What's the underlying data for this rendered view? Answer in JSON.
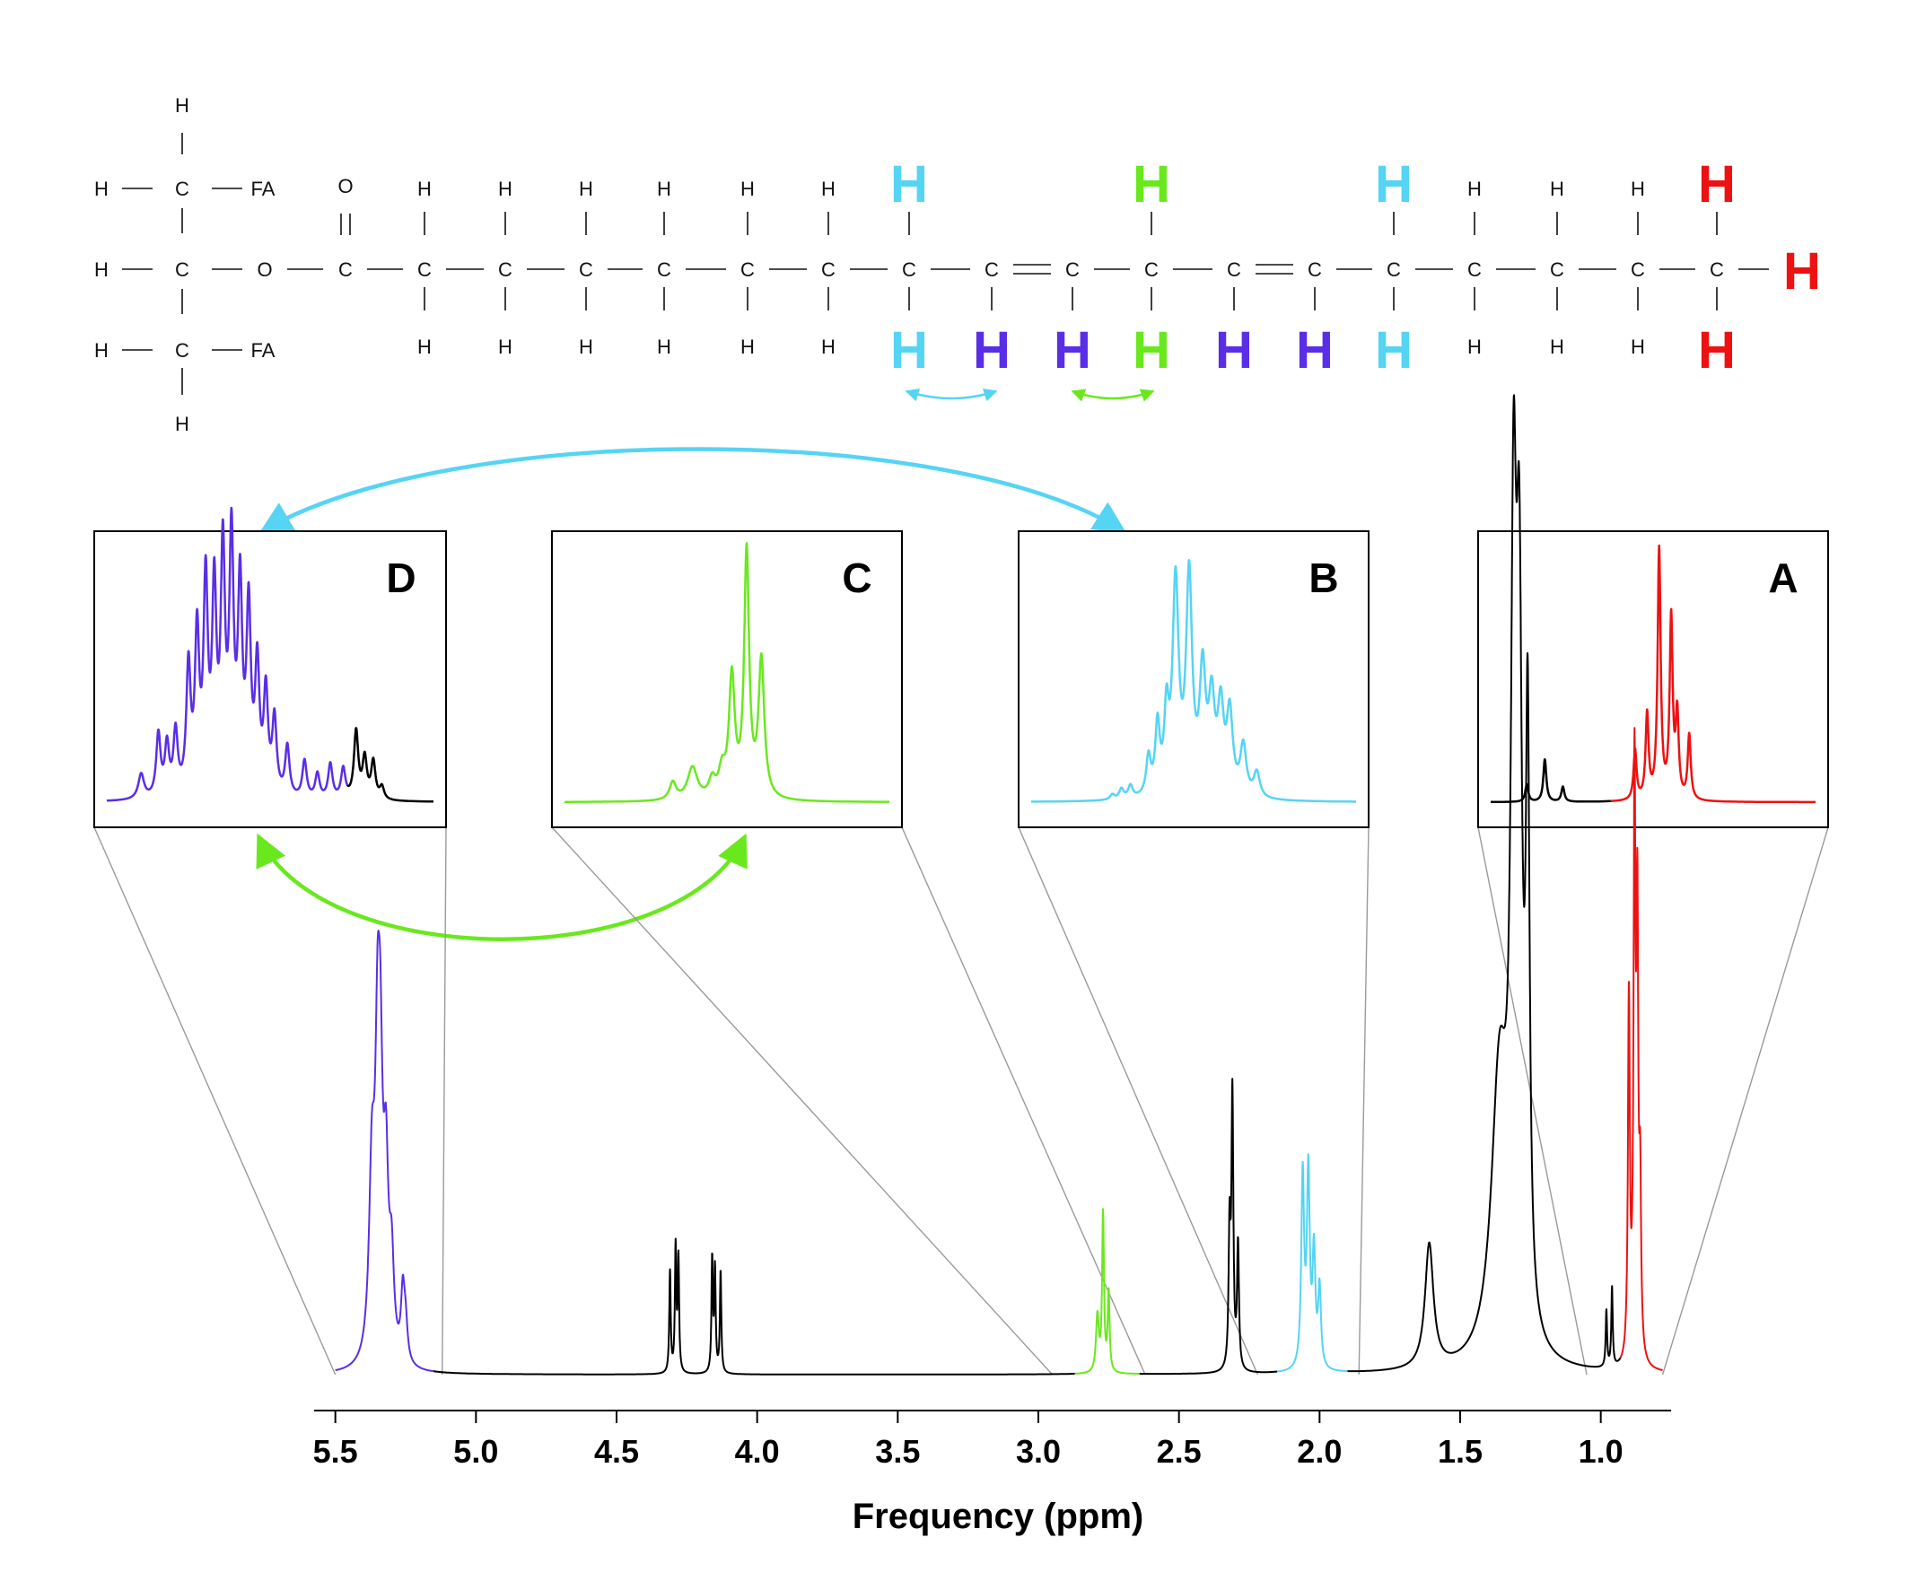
{
  "colors": {
    "black": "#000000",
    "red": "#ee1111",
    "cyan": "#55d4f4",
    "green": "#6ae81e",
    "purple": "#5a2ee6",
    "zoom_line": "#9a9a9a"
  },
  "molecule": {
    "glycerol": {
      "top_H": "H",
      "bottom_H": "H",
      "rows": [
        {
          "left": "H",
          "center": "C",
          "right": "FA"
        },
        {
          "left": "H",
          "center": "C",
          "right": "O"
        },
        {
          "left": "H",
          "center": "C",
          "right": "FA"
        }
      ]
    },
    "carbonyl": {
      "carbon": "C",
      "oxygen": "O"
    },
    "chain": [
      {
        "atom": "C",
        "top": "H",
        "bottom": "H",
        "color": "black",
        "bond_right": "single"
      },
      {
        "atom": "C",
        "top": "H",
        "bottom": "H",
        "color": "black",
        "bond_right": "single"
      },
      {
        "atom": "C",
        "top": "H",
        "bottom": "H",
        "color": "black",
        "bond_right": "single"
      },
      {
        "atom": "C",
        "top": "H",
        "bottom": "H",
        "color": "black",
        "bond_right": "single"
      },
      {
        "atom": "C",
        "top": "H",
        "bottom": "H",
        "color": "black",
        "bond_right": "single"
      },
      {
        "atom": "C",
        "top": "H",
        "bottom": "H",
        "color": "black",
        "bond_right": "single"
      },
      {
        "atom": "C",
        "top": "H",
        "bottom": "H",
        "color": "cyan",
        "bond_right": "single"
      },
      {
        "atom": "C",
        "top": "",
        "bottom": "H",
        "color": "purple",
        "bond_right": "double"
      },
      {
        "atom": "C",
        "top": "",
        "bottom": "H",
        "color": "purple",
        "bond_right": "single"
      },
      {
        "atom": "C",
        "top": "H",
        "bottom": "H",
        "color": "green",
        "bond_right": "single"
      },
      {
        "atom": "C",
        "top": "",
        "bottom": "H",
        "color": "purple",
        "bond_right": "double"
      },
      {
        "atom": "C",
        "top": "",
        "bottom": "H",
        "color": "purple",
        "bond_right": "single"
      },
      {
        "atom": "C",
        "top": "H",
        "bottom": "H",
        "color": "cyan",
        "bond_right": "single"
      },
      {
        "atom": "C",
        "top": "H",
        "bottom": "H",
        "color": "black",
        "bond_right": "single"
      },
      {
        "atom": "C",
        "top": "H",
        "bottom": "H",
        "color": "black",
        "bond_right": "single"
      },
      {
        "atom": "C",
        "top": "H",
        "bottom": "H",
        "color": "black",
        "bond_right": "single"
      },
      {
        "atom": "C",
        "top": "H",
        "bottom": "H",
        "color": "red",
        "bond_right": "end"
      }
    ],
    "terminal_H": "H"
  },
  "chart_data": {
    "type": "line",
    "xlabel": "Frequency (ppm)",
    "ylabel": "",
    "xlim": [
      5.55,
      0.75
    ],
    "x_reversed": true,
    "ticks": [
      5.5,
      5.0,
      4.5,
      4.0,
      3.5,
      3.0,
      2.5,
      2.0,
      1.5,
      1.0
    ],
    "tick_labels": [
      "5.5",
      "5.0",
      "4.5",
      "4.0",
      "3.5",
      "3.0",
      "2.5",
      "2.0",
      "1.5",
      "1.0"
    ],
    "baseline": 0,
    "max_intensity": 1.0,
    "peaks": [
      {
        "ppm": 5.37,
        "height": 0.16,
        "width": 0.012
      },
      {
        "ppm": 5.35,
        "height": 0.22,
        "width": 0.01
      },
      {
        "ppm": 5.34,
        "height": 0.2,
        "width": 0.01
      },
      {
        "ppm": 5.32,
        "height": 0.15,
        "width": 0.01
      },
      {
        "ppm": 5.3,
        "height": 0.08,
        "width": 0.01
      },
      {
        "ppm": 5.26,
        "height": 0.06,
        "width": 0.008
      },
      {
        "ppm": 5.25,
        "height": 0.03,
        "width": 0.008
      },
      {
        "ppm": 4.31,
        "height": 0.09,
        "width": 0.003
      },
      {
        "ppm": 4.29,
        "height": 0.11,
        "width": 0.003
      },
      {
        "ppm": 4.28,
        "height": 0.1,
        "width": 0.003
      },
      {
        "ppm": 4.16,
        "height": 0.1,
        "width": 0.003
      },
      {
        "ppm": 4.15,
        "height": 0.09,
        "width": 0.003
      },
      {
        "ppm": 4.13,
        "height": 0.09,
        "width": 0.003
      },
      {
        "ppm": 2.79,
        "height": 0.05,
        "width": 0.006
      },
      {
        "ppm": 2.77,
        "height": 0.14,
        "width": 0.004
      },
      {
        "ppm": 2.75,
        "height": 0.07,
        "width": 0.004
      },
      {
        "ppm": 2.32,
        "height": 0.12,
        "width": 0.004
      },
      {
        "ppm": 2.31,
        "height": 0.24,
        "width": 0.004
      },
      {
        "ppm": 2.29,
        "height": 0.11,
        "width": 0.004
      },
      {
        "ppm": 2.06,
        "height": 0.17,
        "width": 0.006
      },
      {
        "ppm": 2.04,
        "height": 0.17,
        "width": 0.006
      },
      {
        "ppm": 2.02,
        "height": 0.1,
        "width": 0.006
      },
      {
        "ppm": 2.0,
        "height": 0.07,
        "width": 0.006
      },
      {
        "ppm": 1.61,
        "height": 0.11,
        "width": 0.018
      },
      {
        "ppm": 1.36,
        "height": 0.25,
        "width": 0.035
      },
      {
        "ppm": 1.31,
        "height": 0.62,
        "width": 0.012
      },
      {
        "ppm": 1.29,
        "height": 0.55,
        "width": 0.012
      },
      {
        "ppm": 1.26,
        "height": 0.5,
        "width": 0.008
      },
      {
        "ppm": 0.98,
        "height": 0.05,
        "width": 0.003
      },
      {
        "ppm": 0.96,
        "height": 0.07,
        "width": 0.003
      },
      {
        "ppm": 0.9,
        "height": 0.32,
        "width": 0.004
      },
      {
        "ppm": 0.88,
        "height": 0.5,
        "width": 0.004
      },
      {
        "ppm": 0.87,
        "height": 0.37,
        "width": 0.004
      },
      {
        "ppm": 0.86,
        "height": 0.14,
        "width": 0.004
      }
    ],
    "series": [
      {
        "range": [
          5.55,
          5.15
        ],
        "color": "purple"
      },
      {
        "range": [
          5.15,
          2.87
        ],
        "color": "black"
      },
      {
        "range": [
          2.87,
          2.64
        ],
        "color": "green"
      },
      {
        "range": [
          2.64,
          2.15
        ],
        "color": "black"
      },
      {
        "range": [
          2.15,
          1.9
        ],
        "color": "cyan"
      },
      {
        "range": [
          1.9,
          0.93
        ],
        "color": "black"
      },
      {
        "range": [
          0.93,
          0.75
        ],
        "color": "red"
      }
    ],
    "insets": [
      {
        "label": "D",
        "range": [
          5.5,
          5.12
        ],
        "color": "purple",
        "split_ppm": 5.22,
        "split_color": "black",
        "peaks": [
          {
            "ppm": 5.46,
            "height": 0.1,
            "width": 0.004
          },
          {
            "ppm": 5.44,
            "height": 0.25,
            "width": 0.003
          },
          {
            "ppm": 5.43,
            "height": 0.2,
            "width": 0.003
          },
          {
            "ppm": 5.42,
            "height": 0.25,
            "width": 0.003
          },
          {
            "ppm": 5.405,
            "height": 0.5,
            "width": 0.003
          },
          {
            "ppm": 5.395,
            "height": 0.62,
            "width": 0.003
          },
          {
            "ppm": 5.385,
            "height": 0.82,
            "width": 0.003
          },
          {
            "ppm": 5.375,
            "height": 0.78,
            "width": 0.003
          },
          {
            "ppm": 5.365,
            "height": 0.93,
            "width": 0.003
          },
          {
            "ppm": 5.355,
            "height": 0.98,
            "width": 0.003
          },
          {
            "ppm": 5.345,
            "height": 0.8,
            "width": 0.003
          },
          {
            "ppm": 5.335,
            "height": 0.72,
            "width": 0.003
          },
          {
            "ppm": 5.325,
            "height": 0.5,
            "width": 0.003
          },
          {
            "ppm": 5.315,
            "height": 0.4,
            "width": 0.003
          },
          {
            "ppm": 5.305,
            "height": 0.3,
            "width": 0.003
          },
          {
            "ppm": 5.29,
            "height": 0.2,
            "width": 0.003
          },
          {
            "ppm": 5.27,
            "height": 0.15,
            "width": 0.003
          },
          {
            "ppm": 5.255,
            "height": 0.1,
            "width": 0.003
          },
          {
            "ppm": 5.24,
            "height": 0.14,
            "width": 0.003
          },
          {
            "ppm": 5.225,
            "height": 0.12,
            "width": 0.003
          },
          {
            "ppm": 5.21,
            "height": 0.27,
            "width": 0.003
          },
          {
            "ppm": 5.2,
            "height": 0.16,
            "width": 0.003
          },
          {
            "ppm": 5.19,
            "height": 0.15,
            "width": 0.003
          },
          {
            "ppm": 5.18,
            "height": 0.05,
            "width": 0.003
          }
        ]
      },
      {
        "label": "C",
        "range": [
          2.95,
          2.62
        ],
        "color": "green",
        "peaks": [
          {
            "ppm": 2.84,
            "height": 0.07,
            "width": 0.004
          },
          {
            "ppm": 2.82,
            "height": 0.13,
            "width": 0.006
          },
          {
            "ppm": 2.8,
            "height": 0.07,
            "width": 0.004
          },
          {
            "ppm": 2.79,
            "height": 0.1,
            "width": 0.004
          },
          {
            "ppm": 2.78,
            "height": 0.48,
            "width": 0.0035
          },
          {
            "ppm": 2.765,
            "height": 0.98,
            "width": 0.003
          },
          {
            "ppm": 2.75,
            "height": 0.55,
            "width": 0.0035
          }
        ]
      },
      {
        "label": "B",
        "range": [
          2.22,
          1.86
        ],
        "color": "cyan",
        "peaks": [
          {
            "ppm": 2.13,
            "height": 0.02,
            "width": 0.003
          },
          {
            "ppm": 2.12,
            "height": 0.04,
            "width": 0.003
          },
          {
            "ppm": 2.11,
            "height": 0.05,
            "width": 0.003
          },
          {
            "ppm": 2.09,
            "height": 0.15,
            "width": 0.003
          },
          {
            "ppm": 2.08,
            "height": 0.27,
            "width": 0.003
          },
          {
            "ppm": 2.07,
            "height": 0.3,
            "width": 0.003
          },
          {
            "ppm": 2.06,
            "height": 0.84,
            "width": 0.004
          },
          {
            "ppm": 2.045,
            "height": 0.86,
            "width": 0.004
          },
          {
            "ppm": 2.03,
            "height": 0.47,
            "width": 0.004
          },
          {
            "ppm": 2.02,
            "height": 0.35,
            "width": 0.004
          },
          {
            "ppm": 2.01,
            "height": 0.33,
            "width": 0.004
          },
          {
            "ppm": 2.0,
            "height": 0.32,
            "width": 0.004
          },
          {
            "ppm": 1.985,
            "height": 0.2,
            "width": 0.004
          },
          {
            "ppm": 1.97,
            "height": 0.1,
            "width": 0.004
          }
        ]
      },
      {
        "label": "A",
        "range": [
          1.05,
          0.78
        ],
        "color": "red",
        "split_ppm": 0.95,
        "split_color": "black",
        "peaks": [
          {
            "ppm": 1.02,
            "height": 0.07,
            "width": 0.0015
          },
          {
            "ppm": 1.005,
            "height": 0.17,
            "width": 0.0015
          },
          {
            "ppm": 0.99,
            "height": 0.06,
            "width": 0.0015
          },
          {
            "ppm": 0.93,
            "height": 0.2,
            "width": 0.0015
          },
          {
            "ppm": 0.92,
            "height": 0.34,
            "width": 0.0015
          },
          {
            "ppm": 0.91,
            "height": 1.0,
            "width": 0.0015
          },
          {
            "ppm": 0.9,
            "height": 0.72,
            "width": 0.0015
          },
          {
            "ppm": 0.895,
            "height": 0.33,
            "width": 0.0015
          },
          {
            "ppm": 0.885,
            "height": 0.26,
            "width": 0.0015
          }
        ]
      }
    ]
  }
}
